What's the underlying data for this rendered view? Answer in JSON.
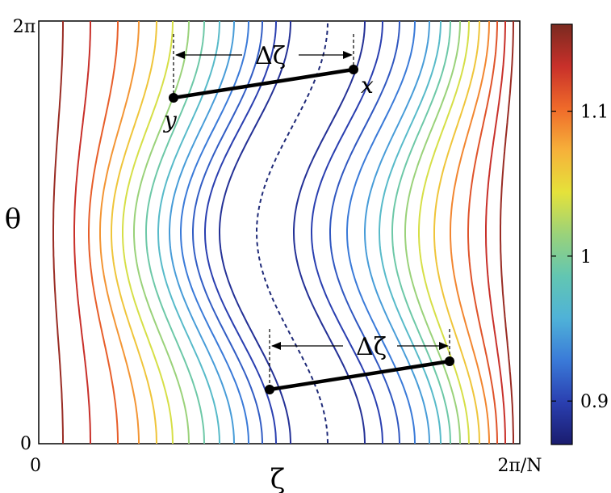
{
  "axes": {
    "x_label": "ζ",
    "y_label": "θ",
    "x_ticks": [
      "0",
      "2π/N"
    ],
    "y_ticks": [
      "0",
      "2π"
    ]
  },
  "colorbar": {
    "ticks": [
      {
        "label": "0.9",
        "value": 0.9
      },
      {
        "label": "1",
        "value": 1.0
      },
      {
        "label": "1.1",
        "value": 1.1
      }
    ],
    "range": [
      0.87,
      1.16
    ],
    "colors": [
      "#1a1c6e",
      "#2a3fb0",
      "#3a7ad8",
      "#4fb2d8",
      "#62c6b2",
      "#9ad27a",
      "#e5e23a",
      "#f6b13a",
      "#ef6a2a",
      "#c8302a",
      "#7a2a20"
    ]
  },
  "annotations": {
    "delta_label_top": "Δζ",
    "delta_label_bottom": "Δζ",
    "point_x": "x",
    "point_y": "y"
  }
}
